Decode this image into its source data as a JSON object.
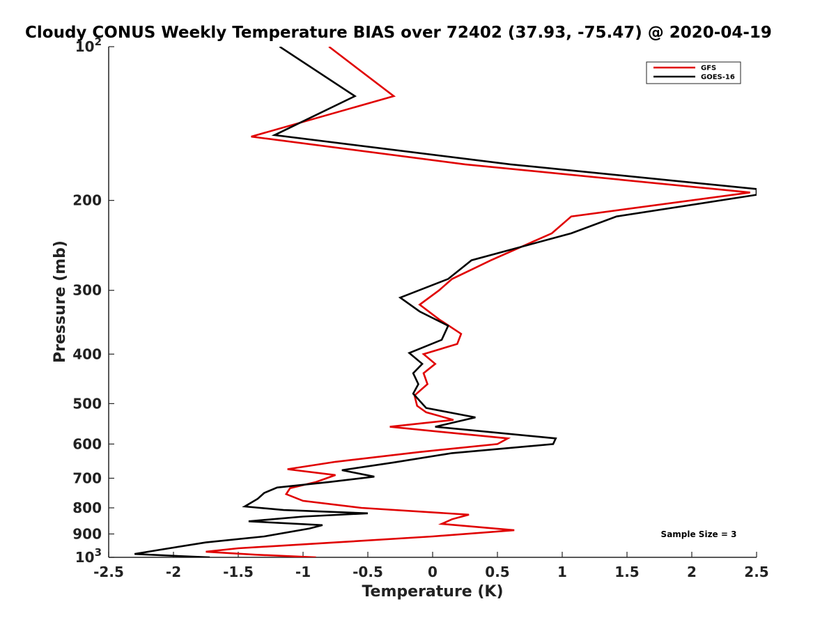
{
  "chart_data": {
    "type": "line",
    "title": "Cloudy CONUS Weekly Temperature BIAS over 72402 (37.93, -75.47) @ 2020-04-19",
    "xlabel": "Temperature (K)",
    "ylabel": "Pressure (mb)",
    "xlim": [
      -2.5,
      2.5
    ],
    "ylim": [
      100,
      1000
    ],
    "y_scale": "log",
    "y_reversed": true,
    "x_ticks": [
      -2.5,
      -2,
      -1.5,
      -1,
      -0.5,
      0,
      0.5,
      1,
      1.5,
      2,
      2.5
    ],
    "x_tick_labels": [
      "-2.5",
      "-2",
      "-1.5",
      "-1",
      "-0.5",
      "0",
      "0.5",
      "1",
      "1.5",
      "2",
      "2.5"
    ],
    "y_ticks": [
      100,
      200,
      300,
      400,
      500,
      600,
      700,
      800,
      900,
      1000
    ],
    "y_tick_labels": [
      {
        "base": "10",
        "sup": "2"
      },
      {
        "base": "200",
        "sup": ""
      },
      {
        "base": "300",
        "sup": ""
      },
      {
        "base": "400",
        "sup": ""
      },
      {
        "base": "500",
        "sup": ""
      },
      {
        "base": "600",
        "sup": ""
      },
      {
        "base": "700",
        "sup": ""
      },
      {
        "base": "800",
        "sup": ""
      },
      {
        "base": "900",
        "sup": ""
      },
      {
        "base": "10",
        "sup": "3"
      }
    ],
    "grid": false,
    "legend_position": "top-right",
    "annotation": "Sample Size = 3",
    "series": [
      {
        "name": "GFS",
        "color": "#e00000",
        "points": [
          [
            -0.8,
            100
          ],
          [
            -0.3,
            125
          ],
          [
            -1.4,
            150
          ],
          [
            0.25,
            170
          ],
          [
            2.45,
            193
          ],
          [
            1.07,
            215
          ],
          [
            0.92,
            232
          ],
          [
            0.45,
            262
          ],
          [
            0.15,
            285
          ],
          [
            0.05,
            300
          ],
          [
            -0.1,
            320
          ],
          [
            0.05,
            342
          ],
          [
            0.22,
            365
          ],
          [
            0.19,
            382
          ],
          [
            -0.07,
            400
          ],
          [
            0.02,
            418
          ],
          [
            -0.07,
            436
          ],
          [
            -0.04,
            458
          ],
          [
            -0.14,
            482
          ],
          [
            -0.12,
            505
          ],
          [
            -0.05,
            520
          ],
          [
            0.16,
            538
          ],
          [
            -0.33,
            555
          ],
          [
            0.58,
            585
          ],
          [
            0.5,
            600
          ],
          [
            -0.1,
            622
          ],
          [
            -0.75,
            650
          ],
          [
            -1.12,
            672
          ],
          [
            -0.75,
            690
          ],
          [
            -0.9,
            712
          ],
          [
            -1.1,
            732
          ],
          [
            -1.13,
            752
          ],
          [
            -1.0,
            775
          ],
          [
            -0.55,
            800
          ],
          [
            0.28,
            825
          ],
          [
            0.15,
            842
          ],
          [
            0.07,
            860
          ],
          [
            0.63,
            885
          ],
          [
            0.0,
            910
          ],
          [
            -0.75,
            935
          ],
          [
            -1.5,
            960
          ],
          [
            -1.75,
            975
          ],
          [
            -1.37,
            988
          ],
          [
            -0.9,
            1000
          ]
        ]
      },
      {
        "name": "GOES-16",
        "color": "#000000",
        "points": [
          [
            -1.18,
            100
          ],
          [
            -0.6,
            125
          ],
          [
            -1.22,
            149
          ],
          [
            0.6,
            170
          ],
          [
            2.5,
            190
          ],
          [
            2.5,
            195
          ],
          [
            1.42,
            215
          ],
          [
            1.07,
            232
          ],
          [
            0.3,
            262
          ],
          [
            0.12,
            285
          ],
          [
            -0.25,
            310
          ],
          [
            -0.1,
            330
          ],
          [
            0.12,
            352
          ],
          [
            0.07,
            375
          ],
          [
            -0.18,
            398
          ],
          [
            -0.08,
            418
          ],
          [
            -0.15,
            436
          ],
          [
            -0.11,
            458
          ],
          [
            -0.15,
            478
          ],
          [
            -0.05,
            510
          ],
          [
            0.33,
            532
          ],
          [
            0.02,
            555
          ],
          [
            0.95,
            585
          ],
          [
            0.93,
            600
          ],
          [
            0.15,
            625
          ],
          [
            -0.3,
            652
          ],
          [
            -0.7,
            675
          ],
          [
            -0.45,
            695
          ],
          [
            -0.8,
            712
          ],
          [
            -1.2,
            730
          ],
          [
            -1.3,
            748
          ],
          [
            -1.35,
            768
          ],
          [
            -1.45,
            795
          ],
          [
            -1.15,
            808
          ],
          [
            -0.5,
            820
          ],
          [
            -1.0,
            832
          ],
          [
            -1.42,
            850
          ],
          [
            -0.85,
            865
          ],
          [
            -0.95,
            878
          ],
          [
            -1.3,
            910
          ],
          [
            -1.75,
            935
          ],
          [
            -2.12,
            968
          ],
          [
            -2.3,
            985
          ],
          [
            -2.0,
            993
          ],
          [
            -1.72,
            1000
          ]
        ]
      }
    ]
  }
}
